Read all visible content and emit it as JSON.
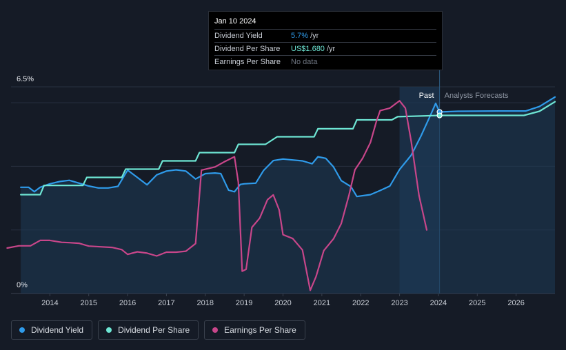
{
  "tooltip": {
    "date": "Jan 10 2024",
    "rows": [
      {
        "label": "Dividend Yield",
        "value": "5.7%",
        "unit": "/yr"
      },
      {
        "label": "Dividend Per Share",
        "value": "US$1.680",
        "unit": "/yr"
      },
      {
        "label": "Earnings Per Share",
        "value": "No data"
      }
    ]
  },
  "legend": [
    {
      "label": "Dividend Yield",
      "color": "#2f9bea"
    },
    {
      "label": "Dividend Per Share",
      "color": "#6ee6d4"
    },
    {
      "label": "Earnings Per Share",
      "color": "#c8468a"
    }
  ],
  "chart_data": {
    "type": "line",
    "ylim": [
      0,
      6.5
    ],
    "y_tick_labels": [
      "6.5%",
      "0%"
    ],
    "y_ticks": [
      6.5,
      0
    ],
    "xlim": [
      2013.0,
      2027.0
    ],
    "x_ticks": [
      2014,
      2015,
      2016,
      2017,
      2018,
      2019,
      2020,
      2021,
      2022,
      2023,
      2024,
      2025,
      2026
    ],
    "x_tick_labels": [
      "2014",
      "2015",
      "2016",
      "2017",
      "2018",
      "2019",
      "2020",
      "2021",
      "2022",
      "2023",
      "2024",
      "2025",
      "2026"
    ],
    "regions": {
      "past_label": "Past",
      "forecast_label": "Analysts Forecasts",
      "shaded_start": 2023.0,
      "present": 2024.03
    },
    "gridlines": true,
    "series": [
      {
        "name": "Dividend Yield",
        "color": "#2f9bea",
        "points": [
          [
            2013.25,
            3.34
          ],
          [
            2013.45,
            3.34
          ],
          [
            2013.6,
            3.2
          ],
          [
            2013.75,
            3.34
          ],
          [
            2014.0,
            3.45
          ],
          [
            2014.25,
            3.52
          ],
          [
            2014.5,
            3.56
          ],
          [
            2014.75,
            3.47
          ],
          [
            2015.0,
            3.38
          ],
          [
            2015.25,
            3.32
          ],
          [
            2015.5,
            3.32
          ],
          [
            2015.75,
            3.37
          ],
          [
            2016.0,
            3.88
          ],
          [
            2016.25,
            3.65
          ],
          [
            2016.5,
            3.42
          ],
          [
            2016.75,
            3.73
          ],
          [
            2017.0,
            3.85
          ],
          [
            2017.25,
            3.89
          ],
          [
            2017.5,
            3.85
          ],
          [
            2017.75,
            3.6
          ],
          [
            2018.0,
            3.77
          ],
          [
            2018.25,
            3.79
          ],
          [
            2018.4,
            3.77
          ],
          [
            2018.6,
            3.25
          ],
          [
            2018.75,
            3.2
          ],
          [
            2018.9,
            3.43
          ],
          [
            2019.0,
            3.45
          ],
          [
            2019.3,
            3.47
          ],
          [
            2019.5,
            3.87
          ],
          [
            2019.75,
            4.18
          ],
          [
            2020.0,
            4.23
          ],
          [
            2020.25,
            4.2
          ],
          [
            2020.5,
            4.17
          ],
          [
            2020.75,
            4.08
          ],
          [
            2020.9,
            4.3
          ],
          [
            2021.1,
            4.25
          ],
          [
            2021.3,
            3.98
          ],
          [
            2021.5,
            3.55
          ],
          [
            2021.75,
            3.36
          ],
          [
            2021.9,
            3.05
          ],
          [
            2022.25,
            3.11
          ],
          [
            2022.5,
            3.24
          ],
          [
            2022.75,
            3.38
          ],
          [
            2023.0,
            3.9
          ],
          [
            2023.3,
            4.35
          ],
          [
            2023.55,
            4.95
          ],
          [
            2023.8,
            5.62
          ],
          [
            2023.93,
            5.98
          ],
          [
            2024.03,
            5.71
          ],
          [
            2024.5,
            5.73
          ],
          [
            2025.5,
            5.74
          ],
          [
            2026.25,
            5.74
          ],
          [
            2026.6,
            5.88
          ],
          [
            2027.0,
            6.18
          ]
        ],
        "marker_at": 2024.03
      },
      {
        "name": "Dividend Per Share",
        "color": "#6ee6d4",
        "points": [
          [
            2013.25,
            3.11
          ],
          [
            2013.75,
            3.11
          ],
          [
            2013.85,
            3.4
          ],
          [
            2014.85,
            3.4
          ],
          [
            2014.95,
            3.65
          ],
          [
            2015.85,
            3.65
          ],
          [
            2015.95,
            3.91
          ],
          [
            2016.8,
            3.91
          ],
          [
            2016.9,
            4.17
          ],
          [
            2017.75,
            4.17
          ],
          [
            2017.85,
            4.43
          ],
          [
            2018.75,
            4.43
          ],
          [
            2018.85,
            4.69
          ],
          [
            2019.55,
            4.69
          ],
          [
            2019.85,
            4.93
          ],
          [
            2020.8,
            4.93
          ],
          [
            2020.9,
            5.18
          ],
          [
            2021.8,
            5.18
          ],
          [
            2021.9,
            5.46
          ],
          [
            2022.8,
            5.46
          ],
          [
            2022.95,
            5.56
          ],
          [
            2024.03,
            5.6
          ],
          [
            2024.5,
            5.6
          ],
          [
            2026.2,
            5.6
          ],
          [
            2026.6,
            5.73
          ],
          [
            2027.0,
            6.03
          ]
        ],
        "marker_at": 2024.03
      },
      {
        "name": "Earnings Per Share",
        "color": "#c8468a",
        "points": [
          [
            2012.9,
            1.43
          ],
          [
            2013.2,
            1.5
          ],
          [
            2013.5,
            1.5
          ],
          [
            2013.75,
            1.67
          ],
          [
            2014.0,
            1.67
          ],
          [
            2014.3,
            1.61
          ],
          [
            2014.5,
            1.6
          ],
          [
            2014.75,
            1.58
          ],
          [
            2015.0,
            1.49
          ],
          [
            2015.3,
            1.47
          ],
          [
            2015.6,
            1.45
          ],
          [
            2015.85,
            1.38
          ],
          [
            2016.0,
            1.23
          ],
          [
            2016.25,
            1.31
          ],
          [
            2016.5,
            1.27
          ],
          [
            2016.75,
            1.18
          ],
          [
            2017.0,
            1.3
          ],
          [
            2017.25,
            1.3
          ],
          [
            2017.5,
            1.33
          ],
          [
            2017.75,
            1.57
          ],
          [
            2017.9,
            3.88
          ],
          [
            2018.25,
            3.98
          ],
          [
            2018.5,
            4.15
          ],
          [
            2018.75,
            4.3
          ],
          [
            2018.85,
            3.5
          ],
          [
            2018.95,
            0.7
          ],
          [
            2019.05,
            0.76
          ],
          [
            2019.2,
            2.08
          ],
          [
            2019.4,
            2.37
          ],
          [
            2019.6,
            2.95
          ],
          [
            2019.75,
            3.1
          ],
          [
            2019.9,
            2.63
          ],
          [
            2020.0,
            1.85
          ],
          [
            2020.25,
            1.73
          ],
          [
            2020.5,
            1.37
          ],
          [
            2020.7,
            0.1
          ],
          [
            2020.85,
            0.53
          ],
          [
            2021.05,
            1.35
          ],
          [
            2021.3,
            1.72
          ],
          [
            2021.5,
            2.2
          ],
          [
            2021.7,
            3.1
          ],
          [
            2021.85,
            3.89
          ],
          [
            2022.05,
            4.25
          ],
          [
            2022.25,
            4.75
          ],
          [
            2022.4,
            5.4
          ],
          [
            2022.5,
            5.75
          ],
          [
            2022.75,
            5.83
          ],
          [
            2023.0,
            6.06
          ],
          [
            2023.15,
            5.83
          ],
          [
            2023.3,
            4.78
          ],
          [
            2023.5,
            3.08
          ],
          [
            2023.7,
            2.0
          ]
        ]
      }
    ]
  }
}
